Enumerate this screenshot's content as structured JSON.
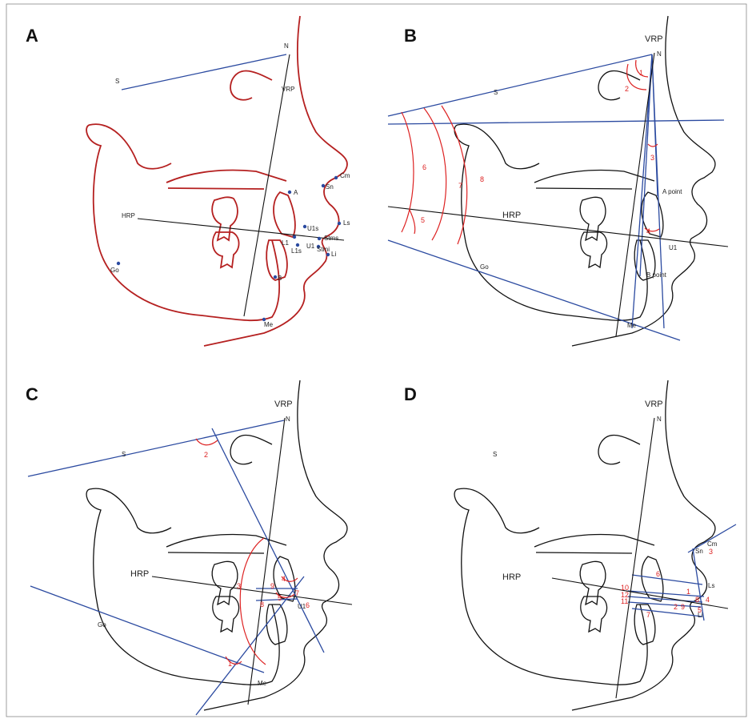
{
  "panels": [
    {
      "letter": "A",
      "labels": [
        "N",
        "S",
        "VRP",
        "HRP",
        "A",
        "Cm",
        "Sn",
        "U1s",
        "Ls",
        "Stms",
        "Stmi",
        "L1",
        "L1s",
        "U1",
        "Li",
        "B",
        "Go",
        "Me"
      ]
    },
    {
      "letter": "B",
      "labels": [
        "VRP",
        "N",
        "S",
        "HRP",
        "A point",
        "B point",
        "Go",
        "Me",
        "U1",
        "1",
        "2",
        "3",
        "4",
        "5",
        "6",
        "7",
        "8"
      ]
    },
    {
      "letter": "C",
      "labels": [
        "VRP",
        "N",
        "S",
        "HRP",
        "Go",
        "Me",
        "U1",
        "1",
        "2",
        "3",
        "4",
        "5",
        "6",
        "7",
        "8",
        "9"
      ]
    },
    {
      "letter": "D",
      "labels": [
        "VRP",
        "N",
        "S",
        "HRP",
        "Cm",
        "Sn",
        "Ls",
        "Li",
        "1",
        "2",
        "3",
        "4",
        "5",
        "6",
        "7",
        "8",
        "9",
        "10",
        "11",
        "12"
      ]
    }
  ]
}
